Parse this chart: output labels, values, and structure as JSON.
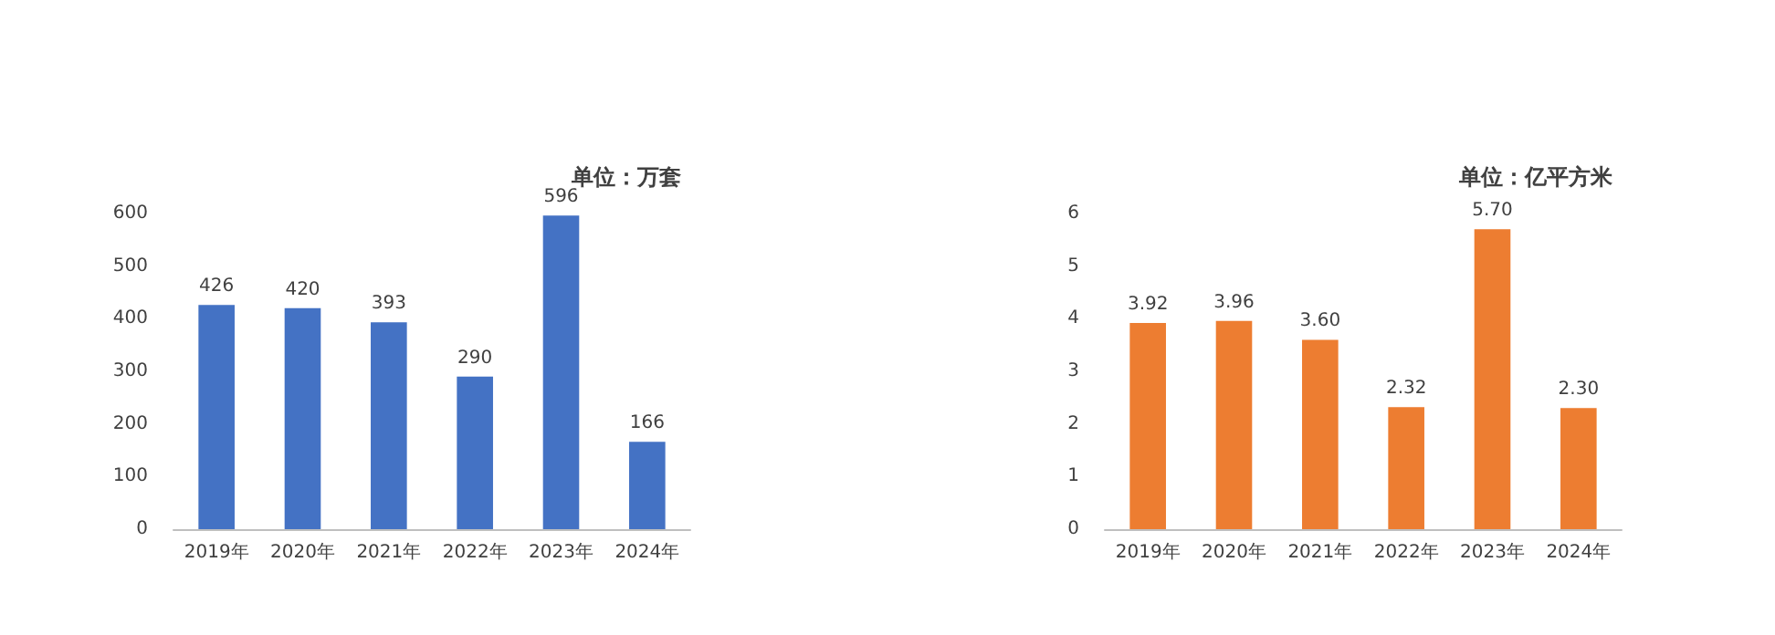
{
  "chart_data": [
    {
      "type": "bar",
      "title": "单位：万套",
      "categories": [
        "2019年",
        "2020年",
        "2021年",
        "2022年",
        "2023年",
        "2024年"
      ],
      "values": [
        426,
        420,
        393,
        290,
        596,
        166
      ],
      "color": "#4472c4",
      "ylim": [
        0,
        600
      ],
      "yticks": [
        0,
        100,
        200,
        300,
        400,
        500,
        600
      ],
      "data_labels": true
    },
    {
      "type": "bar",
      "title": "单位：亿平方米",
      "categories": [
        "2019年",
        "2020年",
        "2021年",
        "2022年",
        "2023年",
        "2024年"
      ],
      "values": [
        3.92,
        3.96,
        3.6,
        2.32,
        5.7,
        2.3
      ],
      "value_labels": [
        "3.92",
        "3.96",
        "3.60",
        "2.32",
        "5.70",
        "2.30"
      ],
      "color": "#ed7d31",
      "ylim": [
        0,
        6
      ],
      "yticks": [
        0,
        1,
        2,
        3,
        4,
        5,
        6
      ]
    }
  ]
}
